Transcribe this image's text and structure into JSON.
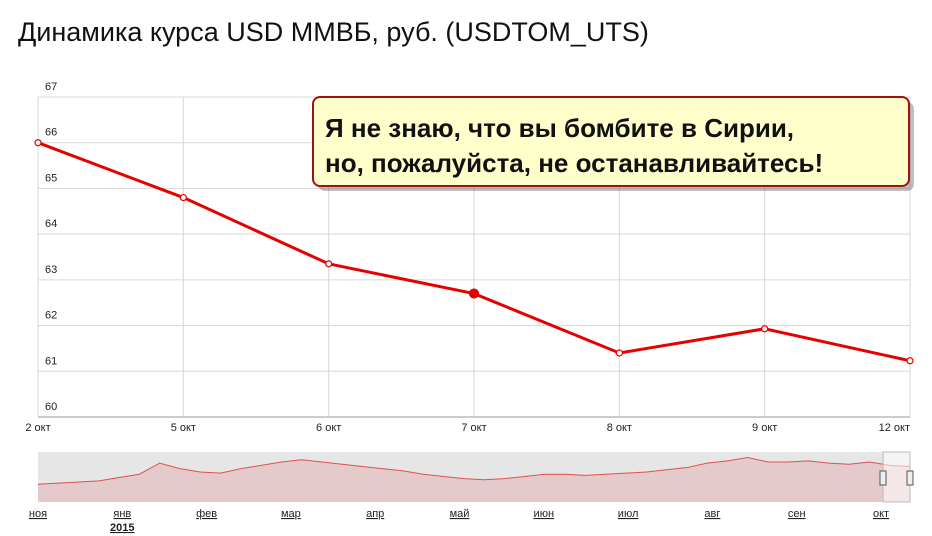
{
  "chart_data": {
    "type": "line",
    "title": "Динамика курса USD ММВБ, руб. (USDTOM_UTS)",
    "categories": [
      "2 окт",
      "5 окт",
      "6 окт",
      "7 окт",
      "8 окт",
      "9 окт",
      "12 окт"
    ],
    "series": [
      {
        "color": "#e60000",
        "values": [
          66.0,
          64.8,
          63.35,
          62.7,
          61.4,
          61.93,
          61.23
        ]
      }
    ],
    "ylim": [
      60,
      67
    ],
    "yticks": [
      60,
      61,
      62,
      63,
      64,
      65,
      66,
      67
    ],
    "grid": true,
    "annotation": [
      "Я не знаю, что вы бомбите в Сирии,",
      "но, пожалуйста, не останавливайтесь!"
    ],
    "navigator": {
      "type": "area",
      "color": "#e05050",
      "values": [
        46,
        47,
        48,
        49,
        52,
        55,
        65,
        60,
        57,
        56,
        60,
        63,
        66,
        68,
        66,
        64,
        62,
        60,
        58,
        55,
        53,
        51,
        50,
        51,
        53,
        55,
        55,
        54,
        55,
        56,
        57,
        59,
        61,
        65,
        67,
        70,
        66,
        66,
        67,
        65,
        64,
        66,
        63,
        62
      ],
      "ylim": [
        30,
        75
      ],
      "categories": [
        "ноя",
        "янв",
        "фев",
        "мар",
        "апр",
        "май",
        "июн",
        "июл",
        "авг",
        "сен",
        "окт"
      ],
      "year": "2015"
    }
  }
}
